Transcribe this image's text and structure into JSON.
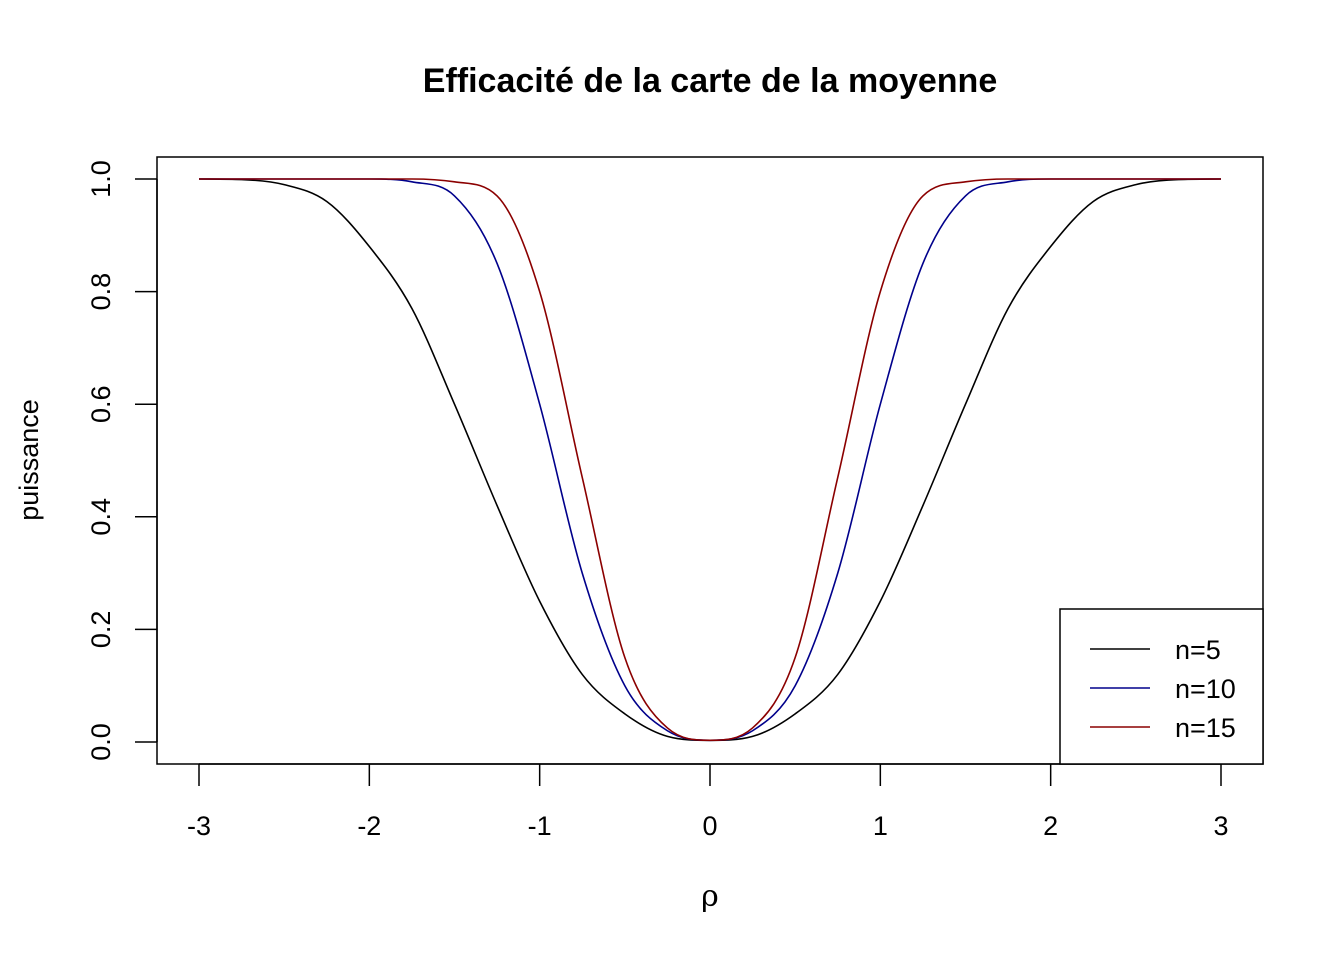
{
  "chart_data": {
    "type": "line",
    "title": "Efficacité de la carte de la moyenne",
    "xlabel": "ρ",
    "ylabel": "puissance",
    "xlim": [
      -3,
      3
    ],
    "ylim": [
      0,
      1
    ],
    "xticks": [
      "-3",
      "-2",
      "-1",
      "0",
      "1",
      "2",
      "3"
    ],
    "yticks": [
      "0.0",
      "0.2",
      "0.4",
      "0.6",
      "0.8",
      "1.0"
    ],
    "legend_position": "bottom-right",
    "legend": [
      "n=5",
      "n=10",
      "n=15"
    ],
    "x": [
      -3.0,
      -2.75,
      -2.5,
      -2.25,
      -2.0,
      -1.75,
      -1.5,
      -1.25,
      -1.0,
      -0.75,
      -0.5,
      -0.25,
      0.0,
      0.25,
      0.5,
      0.75,
      1.0,
      1.25,
      1.5,
      1.75,
      2.0,
      2.25,
      2.5,
      2.75,
      3.0
    ],
    "series": [
      {
        "name": "n=5",
        "color": "#000000",
        "values": [
          1.0,
          0.999,
          0.99,
          0.96,
          0.88,
          0.77,
          0.6,
          0.42,
          0.25,
          0.12,
          0.05,
          0.01,
          0.003,
          0.01,
          0.05,
          0.12,
          0.25,
          0.42,
          0.6,
          0.77,
          0.88,
          0.96,
          0.99,
          0.999,
          1.0
        ]
      },
      {
        "name": "n=10",
        "color": "#00008B",
        "values": [
          1.0,
          1.0,
          1.0,
          1.0,
          1.0,
          0.995,
          0.97,
          0.85,
          0.6,
          0.3,
          0.1,
          0.02,
          0.003,
          0.02,
          0.1,
          0.3,
          0.6,
          0.85,
          0.97,
          0.995,
          1.0,
          1.0,
          1.0,
          1.0,
          1.0
        ]
      },
      {
        "name": "n=15",
        "color": "#8B0000",
        "values": [
          1.0,
          1.0,
          1.0,
          1.0,
          1.0,
          1.0,
          0.995,
          0.97,
          0.8,
          0.47,
          0.15,
          0.025,
          0.003,
          0.025,
          0.15,
          0.47,
          0.8,
          0.97,
          0.995,
          1.0,
          1.0,
          1.0,
          1.0,
          1.0,
          1.0
        ]
      }
    ]
  }
}
